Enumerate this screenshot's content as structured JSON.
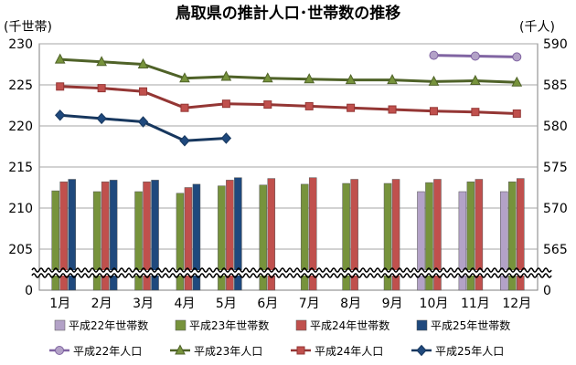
{
  "chart_data": {
    "type": "bar+line",
    "title": "鳥取県の推計人口･世帯数の推移",
    "left_axis_unit": "(千世帯)",
    "right_axis_unit": "(千人)",
    "categories": [
      "1月",
      "2月",
      "3月",
      "4月",
      "5月",
      "6月",
      "7月",
      "8月",
      "9月",
      "10月",
      "11月",
      "12月"
    ],
    "left_axis": {
      "ticks": [
        "0",
        "205",
        "210",
        "215",
        "220",
        "225",
        "230"
      ],
      "break": true,
      "ylim": [
        205,
        230
      ]
    },
    "right_axis": {
      "ticks": [
        "0",
        "565",
        "570",
        "575",
        "580",
        "585",
        "590"
      ],
      "break": true,
      "ylim": [
        565,
        590
      ]
    },
    "bar_series": [
      {
        "name": "平成22年世帯数",
        "color": "#b3a2c7",
        "values": [
          null,
          null,
          null,
          null,
          null,
          null,
          null,
          null,
          null,
          212.0,
          212.0,
          212.0
        ]
      },
      {
        "name": "平成23年世帯数",
        "color": "#77933c",
        "values": [
          212.1,
          212.0,
          212.0,
          211.8,
          212.7,
          212.8,
          212.9,
          213.0,
          213.0,
          213.1,
          213.2,
          213.2
        ]
      },
      {
        "name": "平成24年世帯数",
        "color": "#c0504d",
        "values": [
          213.2,
          213.2,
          213.2,
          212.5,
          213.4,
          213.6,
          213.7,
          213.5,
          213.5,
          213.5,
          213.5,
          213.6
        ]
      },
      {
        "name": "平成25年世帯数",
        "color": "#1f497d",
        "values": [
          213.5,
          213.4,
          213.4,
          212.9,
          213.7,
          null,
          null,
          null,
          null,
          null,
          null,
          null
        ]
      }
    ],
    "line_series": [
      {
        "name": "平成22年人口",
        "color": "#8064a2",
        "fill": "#b3a2c7",
        "marker": "circle",
        "values": [
          null,
          null,
          null,
          null,
          null,
          null,
          null,
          null,
          null,
          588.6,
          588.5,
          588.4
        ]
      },
      {
        "name": "平成23年人口",
        "color": "#4f6228",
        "fill": "#77933c",
        "marker": "triangle",
        "values": [
          588.1,
          587.8,
          587.5,
          585.8,
          586.0,
          585.8,
          585.7,
          585.6,
          585.6,
          585.4,
          585.5,
          585.3
        ]
      },
      {
        "name": "平成24年人口",
        "color": "#943634",
        "fill": "#c0504d",
        "marker": "square",
        "values": [
          584.8,
          584.6,
          584.2,
          582.2,
          582.7,
          582.6,
          582.4,
          582.2,
          582.0,
          581.8,
          581.7,
          581.5
        ]
      },
      {
        "name": "平成25年人口",
        "color": "#17375e",
        "fill": "#1f497d",
        "marker": "diamond",
        "values": [
          581.3,
          580.9,
          580.5,
          578.2,
          578.5,
          null,
          null,
          null,
          null,
          null,
          null,
          null
        ]
      }
    ],
    "grid": true,
    "legend_position": "bottom"
  }
}
